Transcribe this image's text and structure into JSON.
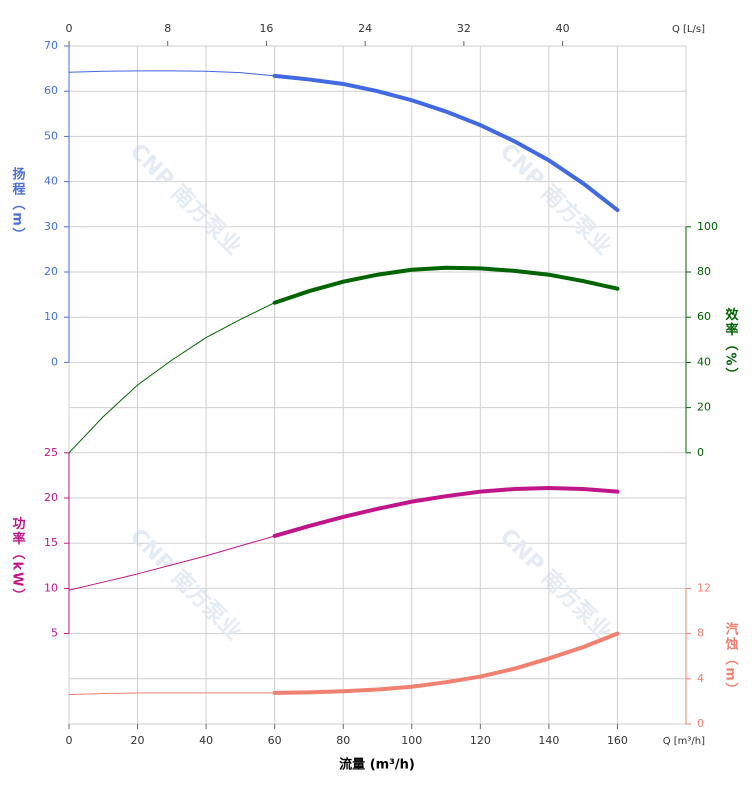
{
  "chart_data": {
    "type": "line",
    "x_title": "流量 (m³/h)",
    "x_unit_label": "Q [m³/h]",
    "x2_unit_label": "Q [L/s]",
    "watermark": "CNP 南方泵业",
    "x": [
      0,
      10,
      20,
      30,
      40,
      50,
      60,
      70,
      80,
      90,
      100,
      110,
      120,
      130,
      140,
      150,
      160
    ],
    "xlim": [
      0,
      180
    ],
    "xticks": [
      0,
      20,
      40,
      60,
      80,
      100,
      120,
      140,
      160
    ],
    "x2lim": [
      0,
      50
    ],
    "x2ticks": [
      0,
      8,
      16,
      24,
      32,
      40
    ],
    "operating_range": [
      60,
      160
    ],
    "grid": true,
    "axes": {
      "y": {
        "title": "扬程（m）",
        "lim": [
          -80,
          70
        ],
        "ticks": [
          0,
          10,
          20,
          30,
          40,
          50,
          60,
          70
        ],
        "side": "left",
        "color": "#4a6fd6"
      },
      "y2": {
        "title": "效率（%）",
        "lim": [
          -120,
          180
        ],
        "ticks": [
          0,
          20,
          40,
          60,
          80,
          100
        ],
        "side": "right",
        "color": "#006400"
      },
      "y3": {
        "title": "功率（kW）",
        "lim": [
          -5,
          70
        ],
        "ticks": [
          5,
          10,
          15,
          20,
          25
        ],
        "side": "left",
        "color": "#c0168a"
      },
      "y4": {
        "title": "汽蚀（m）",
        "lim": [
          0,
          60
        ],
        "ticks": [
          0,
          4,
          8,
          12
        ],
        "side": "right",
        "color": "#f08070"
      }
    },
    "series": [
      {
        "name": "扬程",
        "axis": "y",
        "color": "#4169e1",
        "values": [
          64.2,
          64.4,
          64.5,
          64.5,
          64.4,
          64.1,
          63.4,
          62.6,
          61.6,
          60.0,
          58.0,
          55.5,
          52.5,
          48.9,
          44.7,
          39.6,
          33.7
        ]
      },
      {
        "name": "效率",
        "axis": "y2",
        "color": "#006400",
        "values": [
          0,
          16,
          30,
          41,
          51,
          59,
          66.4,
          71.5,
          75.7,
          78.8,
          81.0,
          81.9,
          81.6,
          80.5,
          78.8,
          76.0,
          72.6
        ]
      },
      {
        "name": "功率",
        "axis": "y3",
        "color": "#c0168a",
        "values": [
          9.8,
          10.7,
          11.6,
          12.6,
          13.6,
          14.7,
          15.8,
          16.9,
          17.9,
          18.8,
          19.6,
          20.2,
          20.7,
          21.0,
          21.1,
          21.0,
          20.7
        ]
      },
      {
        "name": "汽蚀",
        "axis": "y4",
        "color": "#f08070",
        "values": [
          2.6,
          2.7,
          2.75,
          2.75,
          2.75,
          2.75,
          2.75,
          2.8,
          2.9,
          3.05,
          3.3,
          3.7,
          4.2,
          4.9,
          5.8,
          6.8,
          8.0
        ]
      }
    ]
  }
}
